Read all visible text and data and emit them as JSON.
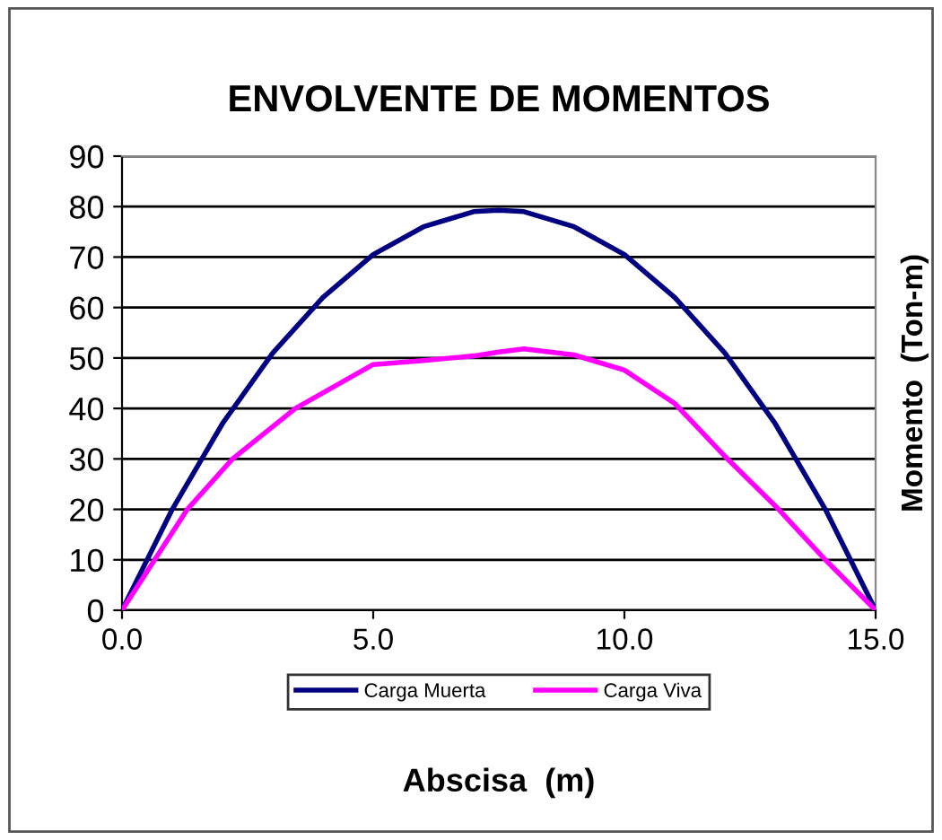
{
  "chart_data": {
    "type": "line",
    "title": "ENVOLVENTE DE MOMENTOS",
    "xlabel": "Abscisa  (m)",
    "ylabel": "Momento  (Ton-m)",
    "xlim": [
      0,
      15
    ],
    "xticks": [
      {
        "value": 0,
        "label": "0.0"
      },
      {
        "value": 5,
        "label": "5.0"
      },
      {
        "value": 10,
        "label": "10.0"
      },
      {
        "value": 15,
        "label": "15.0"
      }
    ],
    "ylim": [
      0,
      90
    ],
    "yticks": [
      0,
      10,
      20,
      30,
      40,
      50,
      60,
      70,
      80,
      90
    ],
    "grid": "y",
    "legend": "bottom",
    "marker": "none",
    "line_style": "solid",
    "series": [
      {
        "name": "Carga Muerta",
        "color": "#000080",
        "x": [
          0,
          1,
          2,
          3,
          4,
          5,
          6,
          7,
          7.5,
          8,
          9,
          10,
          11,
          12,
          13,
          14,
          15
        ],
        "values": [
          0,
          20,
          37,
          51,
          62,
          70.5,
          76,
          79,
          79.3,
          79,
          76,
          70.5,
          62,
          51,
          37,
          20,
          0
        ]
      },
      {
        "name": "Carga Viva",
        "color": "#ff00ff",
        "x": [
          0,
          1.3,
          2.2,
          3.45,
          5,
          6,
          7,
          7.5,
          8,
          9,
          10,
          11,
          12.05,
          13.07,
          14,
          15
        ],
        "values": [
          0,
          20,
          30,
          40,
          48.7,
          49.5,
          50.4,
          51.2,
          51.8,
          50.6,
          47.6,
          41,
          30,
          20,
          10,
          0
        ]
      }
    ]
  }
}
